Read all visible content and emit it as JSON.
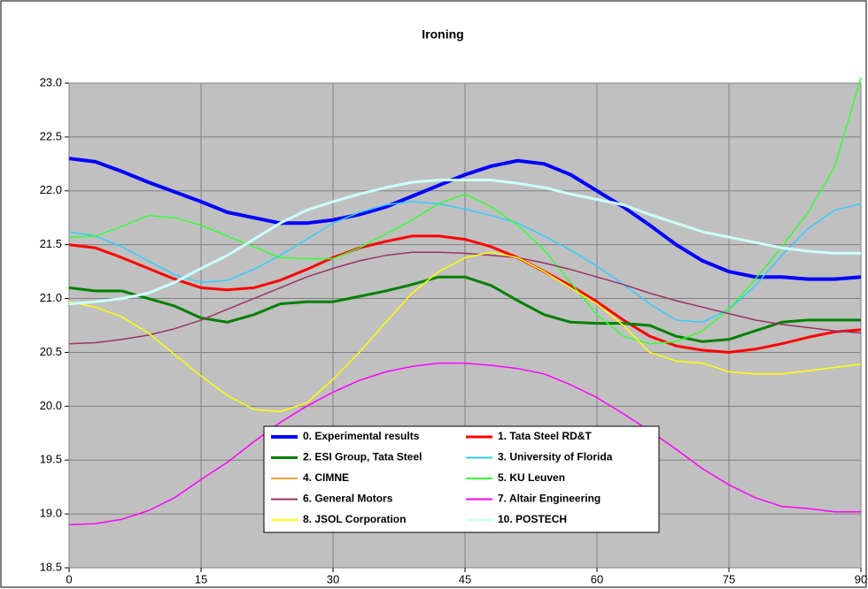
{
  "chart_data": {
    "type": "line",
    "title": "Ironing",
    "x": [
      0,
      3,
      6,
      9,
      12,
      15,
      18,
      21,
      24,
      27,
      30,
      33,
      36,
      39,
      42,
      45,
      48,
      51,
      54,
      57,
      60,
      63,
      66,
      69,
      72,
      75,
      78,
      81,
      84,
      87,
      90
    ],
    "xlim": [
      0,
      90
    ],
    "xticks": [
      0,
      15,
      30,
      45,
      60,
      75,
      90
    ],
    "ylim": [
      18.5,
      23.0
    ],
    "yticks": [
      {
        "value": 18.5,
        "label": "18.5"
      },
      {
        "value": 19.0,
        "label": "19.0"
      },
      {
        "value": 19.5,
        "label": "19.5"
      },
      {
        "value": 20.0,
        "label": "20.0"
      },
      {
        "value": 20.5,
        "label": "20.5"
      },
      {
        "value": 21.0,
        "label": "21.0"
      },
      {
        "value": 21.5,
        "label": "21.5"
      },
      {
        "value": 22.0,
        "label": "22.0"
      },
      {
        "value": 22.5,
        "label": "22.5"
      },
      {
        "value": 23.0,
        "label": "23.0"
      }
    ],
    "grid": true,
    "series": [
      {
        "name": "0. Experimental results",
        "color": "#0000ff",
        "line_width": 4,
        "values": [
          22.3,
          22.27,
          22.18,
          22.08,
          21.99,
          21.9,
          21.8,
          21.75,
          21.7,
          21.7,
          21.73,
          21.78,
          21.85,
          21.95,
          22.05,
          22.15,
          22.23,
          22.28,
          22.25,
          22.15,
          22.0,
          21.85,
          21.68,
          21.5,
          21.35,
          21.25,
          21.2,
          21.2,
          21.18,
          21.18,
          21.2
        ]
      },
      {
        "name": "1. Tata Steel RD&T",
        "color": "#ff0000",
        "line_width": 3,
        "values": [
          21.5,
          21.47,
          21.38,
          21.28,
          21.18,
          21.1,
          21.08,
          21.1,
          21.17,
          21.27,
          21.38,
          21.47,
          21.53,
          21.58,
          21.58,
          21.55,
          21.48,
          21.38,
          21.25,
          21.12,
          20.97,
          20.8,
          20.65,
          20.56,
          20.52,
          20.5,
          20.53,
          20.58,
          20.64,
          20.69,
          20.71
        ]
      },
      {
        "name": "2. ESI Group, Tata Steel",
        "color": "#008000",
        "line_width": 3,
        "values": [
          21.1,
          21.07,
          21.07,
          21.0,
          20.93,
          20.82,
          20.78,
          20.85,
          20.95,
          20.97,
          20.97,
          21.02,
          21.07,
          21.13,
          21.2,
          21.2,
          21.12,
          20.98,
          20.85,
          20.78,
          20.77,
          20.77,
          20.75,
          20.65,
          20.6,
          20.62,
          20.7,
          20.78,
          20.8,
          20.8,
          20.8
        ]
      },
      {
        "name": "3. University of Florida",
        "color": "#33ccff",
        "line_width": 1.5,
        "values": [
          21.62,
          21.58,
          21.48,
          21.35,
          21.22,
          21.15,
          21.17,
          21.27,
          21.4,
          21.55,
          21.7,
          21.8,
          21.87,
          21.9,
          21.88,
          21.83,
          21.77,
          21.7,
          21.58,
          21.45,
          21.3,
          21.13,
          20.95,
          20.8,
          20.78,
          20.9,
          21.12,
          21.4,
          21.65,
          21.82,
          21.88
        ]
      },
      {
        "name": "4. CIMNE",
        "color": "#ff9933",
        "line_width": 1.5,
        "values": [
          null,
          null,
          null,
          null,
          null,
          null,
          null,
          null,
          null,
          null,
          null,
          null,
          null,
          null,
          null,
          null,
          null,
          null,
          null,
          null,
          null,
          null,
          null,
          null,
          null,
          null,
          null,
          null,
          null,
          null,
          null
        ]
      },
      {
        "name": "5. KU Leuven",
        "color": "#33ff33",
        "line_width": 1.5,
        "values": [
          21.57,
          21.58,
          21.67,
          21.77,
          21.75,
          21.68,
          21.58,
          21.48,
          21.38,
          21.37,
          21.37,
          21.47,
          21.6,
          21.73,
          21.88,
          21.97,
          21.85,
          21.68,
          21.45,
          21.15,
          20.85,
          20.65,
          20.58,
          20.6,
          20.7,
          20.9,
          21.18,
          21.48,
          21.8,
          22.22,
          23.05
        ]
      },
      {
        "name": "6. General Motors",
        "color": "#993366",
        "line_width": 1.5,
        "values": [
          20.58,
          20.59,
          20.62,
          20.66,
          20.72,
          20.8,
          20.9,
          21.0,
          21.1,
          21.2,
          21.28,
          21.35,
          21.4,
          21.43,
          21.43,
          21.42,
          21.4,
          21.38,
          21.33,
          21.27,
          21.2,
          21.13,
          21.05,
          20.98,
          20.92,
          20.86,
          20.8,
          20.76,
          20.73,
          20.7,
          20.68
        ]
      },
      {
        "name": "7. Altair Engineering",
        "color": "#ff00ff",
        "line_width": 1.5,
        "values": [
          18.9,
          18.91,
          18.95,
          19.03,
          19.15,
          19.32,
          19.48,
          19.67,
          19.85,
          20.0,
          20.13,
          20.24,
          20.32,
          20.37,
          20.4,
          20.4,
          20.38,
          20.35,
          20.3,
          20.2,
          20.08,
          19.93,
          19.77,
          19.6,
          19.42,
          19.27,
          19.15,
          19.07,
          19.05,
          19.02,
          19.02
        ]
      },
      {
        "name": "8. JSOL Corporation",
        "color": "#ffff00",
        "line_width": 1.5,
        "values": [
          20.97,
          20.92,
          20.83,
          20.68,
          20.48,
          20.28,
          20.1,
          19.97,
          19.95,
          20.03,
          20.25,
          20.5,
          20.78,
          21.05,
          21.25,
          21.38,
          21.43,
          21.38,
          21.25,
          21.1,
          20.95,
          20.75,
          20.5,
          20.42,
          20.4,
          20.32,
          20.3,
          20.3,
          20.33,
          20.36,
          20.39
        ]
      },
      {
        "name": "10. POSTECH",
        "color": "#ccffff",
        "line_width": 3,
        "values": [
          20.95,
          20.97,
          21.0,
          21.05,
          21.15,
          21.28,
          21.4,
          21.55,
          21.7,
          21.82,
          21.9,
          21.97,
          22.03,
          22.08,
          22.1,
          22.1,
          22.1,
          22.07,
          22.03,
          21.97,
          21.92,
          21.87,
          21.78,
          21.7,
          21.62,
          21.57,
          21.52,
          21.47,
          21.44,
          21.42,
          21.42
        ]
      }
    ]
  }
}
